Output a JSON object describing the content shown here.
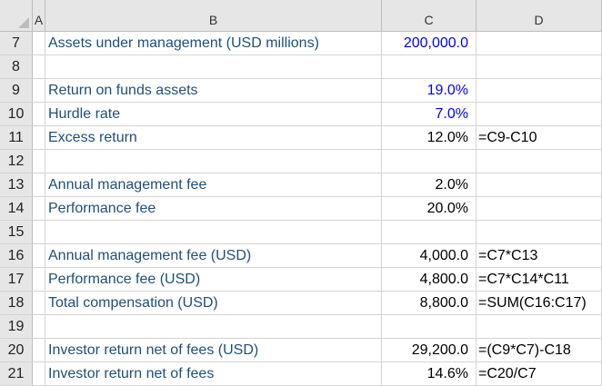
{
  "columns": [
    "A",
    "B",
    "C",
    "D"
  ],
  "rows": [
    {
      "num": "7",
      "label": "Assets under management (USD millions)",
      "value": "200,000.0",
      "formula": "",
      "input": true
    },
    {
      "num": "8",
      "label": "",
      "value": "",
      "formula": "",
      "input": false
    },
    {
      "num": "9",
      "label": "Return on funds assets",
      "value": "19.0%",
      "formula": "",
      "input": true
    },
    {
      "num": "10",
      "label": "Hurdle rate",
      "value": "7.0%",
      "formula": "",
      "input": true
    },
    {
      "num": "11",
      "label": "Excess return",
      "value": "12.0%",
      "formula": "=C9-C10",
      "input": false
    },
    {
      "num": "12",
      "label": "",
      "value": "",
      "formula": "",
      "input": false
    },
    {
      "num": "13",
      "label": "Annual management fee",
      "value": "2.0%",
      "formula": "",
      "input": false
    },
    {
      "num": "14",
      "label": "Performance fee",
      "value": "20.0%",
      "formula": "",
      "input": false
    },
    {
      "num": "15",
      "label": "",
      "value": "",
      "formula": "",
      "input": false
    },
    {
      "num": "16",
      "label": "Annual management fee (USD)",
      "value": "4,000.0",
      "formula": "=C7*C13",
      "input": false
    },
    {
      "num": "17",
      "label": "Performance fee (USD)",
      "value": "4,800.0",
      "formula": "=C7*C14*C11",
      "input": false
    },
    {
      "num": "18",
      "label": "Total compensation (USD)",
      "value": "8,800.0",
      "formula": "=SUM(C16:C17)",
      "input": false
    },
    {
      "num": "19",
      "label": "",
      "value": "",
      "formula": "",
      "input": false
    },
    {
      "num": "20",
      "label": "Investor return net of fees (USD)",
      "value": "29,200.0",
      "formula": "=(C9*C7)-C18",
      "input": false
    },
    {
      "num": "21",
      "label": "Investor return net of fees",
      "value": "14.6%",
      "formula": "=C20/C7",
      "input": false
    }
  ]
}
